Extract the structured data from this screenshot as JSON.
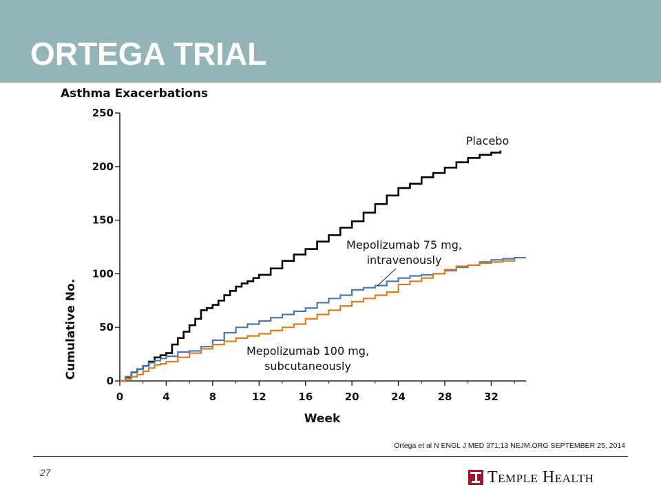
{
  "slide": {
    "title": "ORTEGA TRIAL",
    "citation": "Ortega et al N ENGL J MED 371;13 NEJM.ORG  SEPTEMBER 25, 2014",
    "page_number": "27",
    "brand": "Temple Health",
    "header_color": "#94b5b8",
    "brand_color": "#a3162b",
    "brand_icon": "temple-t-logo-icon"
  },
  "chart_data": {
    "type": "line",
    "title": "Asthma Exacerbations",
    "xlabel": "Week",
    "ylabel": "Cumulative No.",
    "xlim": [
      0,
      35
    ],
    "ylim": [
      0,
      250
    ],
    "xticks": [
      0,
      4,
      8,
      12,
      16,
      20,
      24,
      28,
      32
    ],
    "yticks": [
      0,
      50,
      100,
      150,
      200,
      250
    ],
    "grid": false,
    "legend": "direct labels on lines",
    "series": [
      {
        "name": "Placebo",
        "label_lines": [
          "Placebo"
        ],
        "color": "#000000",
        "x": [
          0,
          0.5,
          1,
          1.5,
          2,
          2.5,
          3,
          3.5,
          4,
          4.5,
          5,
          5.5,
          6,
          6.5,
          7,
          7.5,
          8,
          8.5,
          9,
          9.5,
          10,
          10.5,
          11,
          11.5,
          12,
          13,
          14,
          15,
          16,
          17,
          18,
          19,
          20,
          21,
          22,
          23,
          24,
          25,
          26,
          27,
          28,
          29,
          30,
          31,
          32,
          32.8
        ],
        "y": [
          0,
          3,
          8,
          11,
          14,
          18,
          22,
          24,
          26,
          34,
          40,
          46,
          52,
          58,
          66,
          68,
          71,
          75,
          80,
          84,
          88,
          91,
          93,
          96,
          99,
          105,
          112,
          118,
          123,
          130,
          136,
          143,
          149,
          157,
          165,
          173,
          180,
          184,
          190,
          194,
          199,
          204,
          208,
          211,
          213,
          215
        ]
      },
      {
        "name": "Mepolizumab 75 mg, intravenously",
        "label_lines": [
          "Mepolizumab 75 mg,",
          "intravenously"
        ],
        "color": "#4a78b5",
        "x": [
          0,
          0.5,
          1,
          1.5,
          2,
          2.5,
          3,
          3.5,
          4,
          5,
          6,
          7,
          8,
          9,
          10,
          11,
          12,
          13,
          14,
          15,
          16,
          17,
          18,
          19,
          20,
          21,
          22,
          23,
          24,
          25,
          26,
          27,
          28,
          29,
          30,
          31,
          32,
          33,
          34,
          35
        ],
        "y": [
          0,
          4,
          8,
          11,
          14,
          17,
          19,
          21,
          23,
          27,
          28,
          32,
          38,
          45,
          50,
          53,
          56,
          59,
          62,
          65,
          68,
          73,
          77,
          80,
          85,
          87,
          89,
          93,
          96,
          98,
          99,
          100,
          103,
          106,
          108,
          111,
          113,
          114,
          115,
          115
        ]
      },
      {
        "name": "Mepolizumab 100 mg, subcutaneously",
        "label_lines": [
          "Mepolizumab 100 mg,",
          "subcutaneously"
        ],
        "color": "#e07b1a",
        "x": [
          0,
          0.5,
          1,
          1.5,
          2,
          2.5,
          3,
          3.5,
          4,
          5,
          6,
          7,
          8,
          9,
          10,
          11,
          12,
          13,
          14,
          15,
          16,
          17,
          18,
          19,
          20,
          21,
          22,
          23,
          24,
          25,
          26,
          27,
          28,
          29,
          30,
          31,
          32,
          33,
          34
        ],
        "y": [
          0,
          2,
          4,
          6,
          9,
          12,
          15,
          16,
          18,
          22,
          26,
          30,
          34,
          37,
          40,
          42,
          44,
          47,
          50,
          53,
          58,
          62,
          66,
          70,
          74,
          77,
          80,
          83,
          90,
          93,
          96,
          100,
          104,
          107,
          108,
          110,
          111,
          112,
          113
        ]
      }
    ]
  }
}
